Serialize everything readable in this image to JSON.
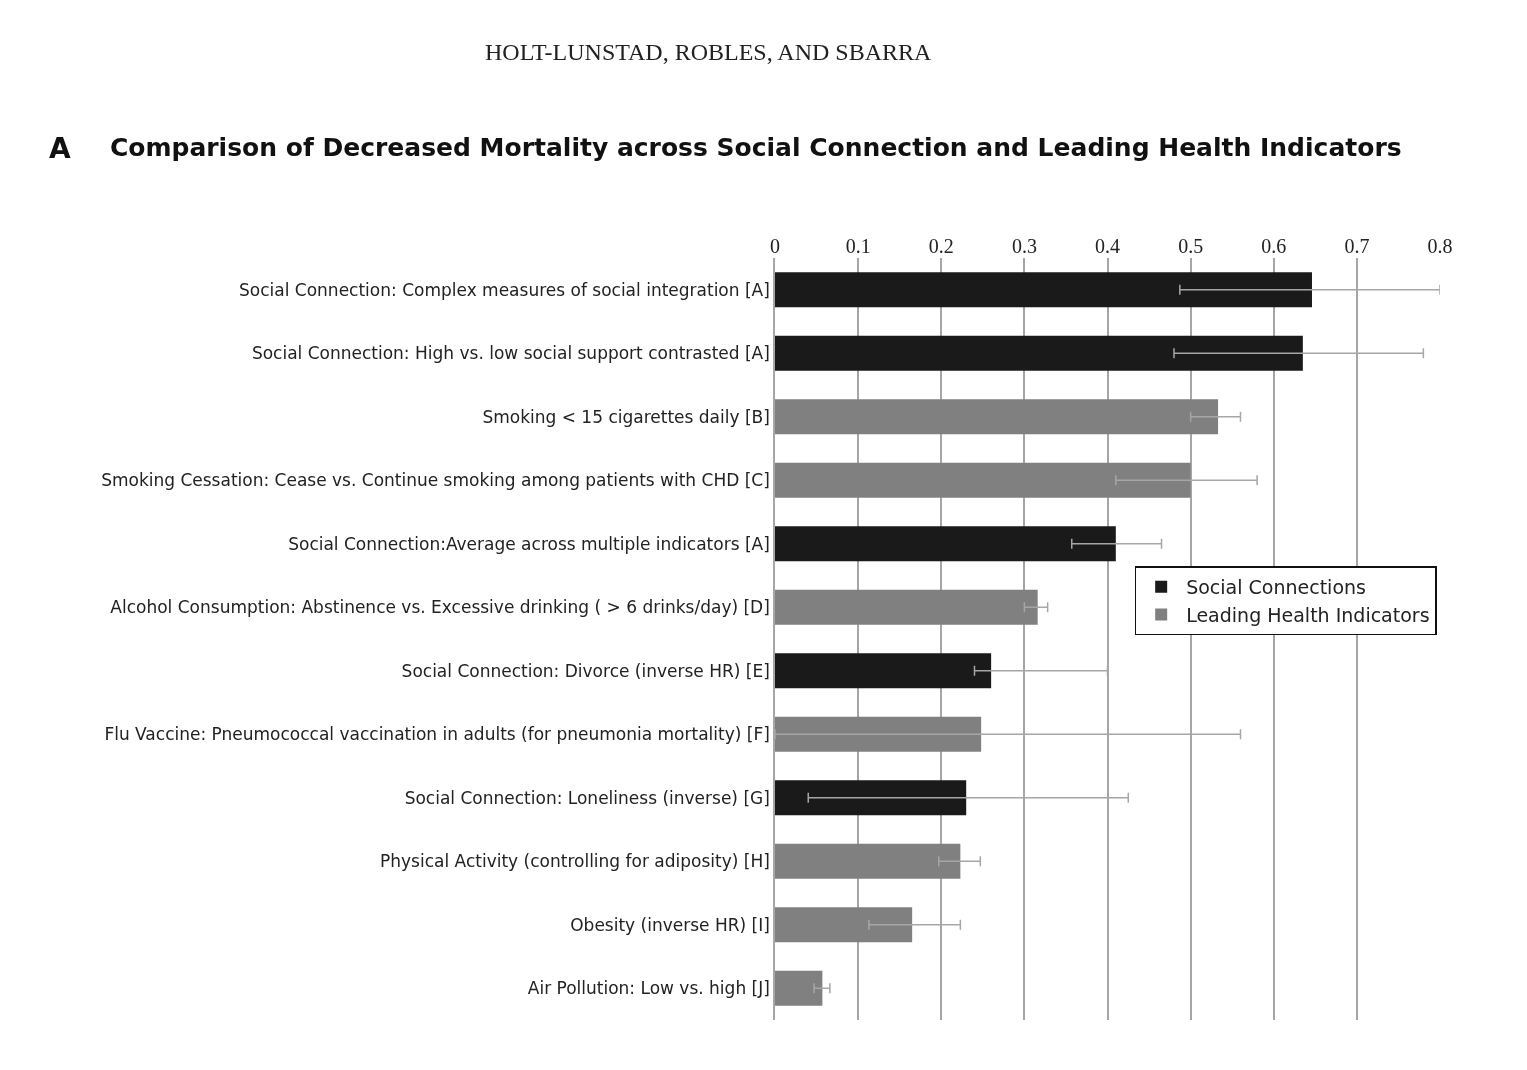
{
  "chart_data": {
    "type": "bar",
    "orientation": "horizontal",
    "title": "Comparison of Decreased Mortality across Social Connection and Leading Health Indicators",
    "annotations": [
      "HOLT-LUNSTAD, ROBLES, AND SBARRA",
      "A"
    ],
    "categories": [
      "Social Connection: Complex measures of social integration [A]",
      "Social Connection: High vs. low social support contrasted [A]",
      "Smoking < 15 cigarettes daily [B]",
      "Smoking Cessation: Cease vs. Continue smoking among patients with CHD [C]",
      "Social Connection:Average across multiple indicators [A]",
      "Alcohol Consumption: Abstinence vs. Excessive drinking ( > 6 drinks/day) [D]",
      "Social Connection: Divorce (inverse HR) [E]",
      "Flu Vaccine: Pneumococcal vaccination in adults (for pneumonia mortality) [F]",
      "Social Connection: Loneliness (inverse) [G]",
      "Physical Activity (controlling for adiposity) [H]",
      "Obesity (inverse HR) [I]",
      "Air Pollution: Low vs. high [J]"
    ],
    "series": [
      {
        "name": "Social Connections",
        "color": "#1a1a1a",
        "values": [
          0.646,
          0.635,
          null,
          null,
          0.41,
          null,
          0.26,
          null,
          0.23,
          null,
          null,
          null
        ],
        "errors": [
          [
            0.487,
            0.8
          ],
          [
            0.48,
            0.78
          ],
          null,
          null,
          [
            0.357,
            0.465
          ],
          null,
          [
            0.24,
            0.4
          ],
          null,
          [
            0.04,
            0.425
          ],
          null,
          null,
          null
        ]
      },
      {
        "name": "Leading Health Indicators",
        "color": "#808080",
        "values": [
          null,
          null,
          0.533,
          0.5,
          null,
          0.316,
          null,
          0.248,
          null,
          0.223,
          0.165,
          0.057
        ],
        "errors": [
          null,
          null,
          [
            0.5,
            0.56
          ],
          [
            0.41,
            0.58
          ],
          null,
          [
            0.3,
            0.328
          ],
          null,
          [
            0,
            0.56
          ],
          null,
          [
            0.197,
            0.247
          ],
          [
            0.113,
            0.223
          ],
          [
            0.047,
            0.066
          ]
        ]
      }
    ],
    "xlim": [
      0,
      0.8
    ],
    "xticks": [
      0,
      0.1,
      0.2,
      0.3,
      0.4,
      0.5,
      0.6,
      0.7,
      0.8
    ],
    "grid": "x",
    "legend": "right"
  }
}
